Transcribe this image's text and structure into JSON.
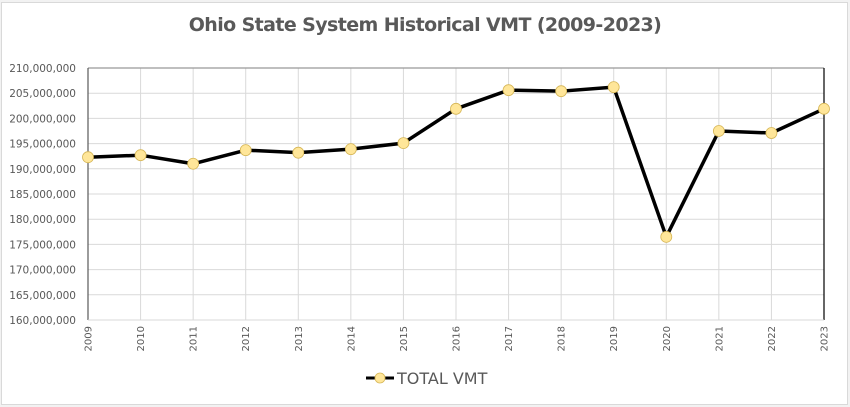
{
  "chart_data": {
    "type": "line",
    "title": "Ohio State System Historical VMT (2009-2023)",
    "xlabel": "",
    "ylabel": "",
    "categories": [
      "2009",
      "2010",
      "2011",
      "2012",
      "2013",
      "2014",
      "2015",
      "2016",
      "2017",
      "2018",
      "2019",
      "2020",
      "2021",
      "2022",
      "2023"
    ],
    "series": [
      {
        "name": "TOTAL VMT",
        "values": [
          192300000,
          192700000,
          191000000,
          193700000,
          193200000,
          193900000,
          195100000,
          201900000,
          205600000,
          205400000,
          206200000,
          176500000,
          197500000,
          197100000,
          201900000
        ],
        "line_color": "#000000",
        "marker_color": "#ffe699",
        "marker_edge": "#d6b656"
      }
    ],
    "ylim": [
      160000000,
      210000000
    ],
    "yticks": [
      "160,000,000",
      "165,000,000",
      "170,000,000",
      "175,000,000",
      "180,000,000",
      "185,000,000",
      "190,000,000",
      "195,000,000",
      "200,000,000",
      "205,000,000",
      "210,000,000"
    ],
    "ytick_values": [
      160000000,
      165000000,
      170000000,
      175000000,
      180000000,
      185000000,
      190000000,
      195000000,
      200000000,
      205000000,
      210000000
    ],
    "grid": true,
    "legend": "bottom"
  }
}
